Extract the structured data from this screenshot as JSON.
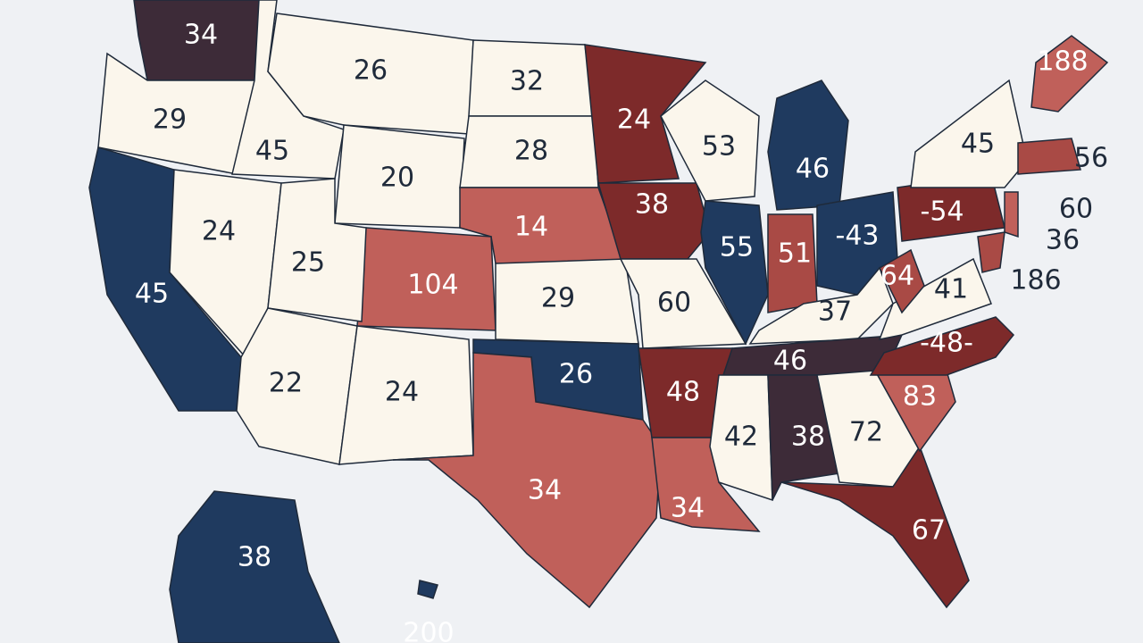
{
  "regions": [
    {
      "label": "34",
      "color": "#3d2b38"
    },
    {
      "label": "29",
      "color": "#fbf6ec"
    },
    {
      "label": "45",
      "color": "#fbf6ec"
    },
    {
      "label": "26",
      "color": "#fbf6ec"
    },
    {
      "label": "20",
      "color": "#fbf6ec"
    },
    {
      "label": "32",
      "color": "#fbf6ec"
    },
    {
      "label": "28",
      "color": "#fbf6ec"
    },
    {
      "label": "14",
      "color": "#c0605a"
    },
    {
      "label": "104",
      "color": "#c0605a"
    },
    {
      "label": "29",
      "color": "#fbf6ec"
    },
    {
      "label": "45",
      "color": "#1f3a5f"
    },
    {
      "label": "24",
      "color": "#fbf6ec"
    },
    {
      "label": "25",
      "color": "#fbf6ec"
    },
    {
      "label": "22",
      "color": "#fbf6ec"
    },
    {
      "label": "24",
      "color": "#fbf6ec"
    },
    {
      "label": "26",
      "color": "#1f3a5f"
    },
    {
      "label": "34",
      "color": "#c0605a"
    },
    {
      "label": "24",
      "color": "#7d2a2a"
    },
    {
      "label": "38",
      "color": "#7d2a2a"
    },
    {
      "label": "60",
      "color": "#fbf6ec"
    },
    {
      "label": "48",
      "color": "#7d2a2a"
    },
    {
      "label": "34",
      "color": "#c0605a"
    },
    {
      "label": "53",
      "color": "#fbf6ec"
    },
    {
      "label": "55",
      "color": "#1f3a5f"
    },
    {
      "label": "46",
      "color": "#1f3a5f"
    },
    {
      "label": "51",
      "color": "#a94a45"
    },
    {
      "label": "-43",
      "color": "#1f3a5f"
    },
    {
      "label": "37",
      "color": "#fbf6ec"
    },
    {
      "label": "46",
      "color": "#3d2b38"
    },
    {
      "label": "42",
      "color": "#fbf6ec"
    },
    {
      "label": "38",
      "color": "#3d2b38"
    },
    {
      "label": "72",
      "color": "#fbf6ec"
    },
    {
      "label": "67",
      "color": "#7d2a2a"
    },
    {
      "label": "83",
      "color": "#c0605a"
    },
    {
      "label": "-48-",
      "color": "#7d2a2a"
    },
    {
      "label": "41",
      "color": "#fbf6ec"
    },
    {
      "label": "64",
      "color": "#a94a45"
    },
    {
      "label": "-54",
      "color": "#7d2a2a"
    },
    {
      "label": "45",
      "color": "#fbf6ec"
    },
    {
      "label": "188",
      "color": "#c0605a"
    },
    {
      "label": "56",
      "color": "#a94a45"
    },
    {
      "label": "60",
      "color": "#c0605a"
    },
    {
      "label": "36",
      "color": "#a94a45"
    },
    {
      "label": "186",
      "color": "#7d2a2a"
    },
    {
      "label": "38",
      "color": "#1f3a5f"
    },
    {
      "label": "200",
      "color": "#1f3a5f"
    }
  ]
}
